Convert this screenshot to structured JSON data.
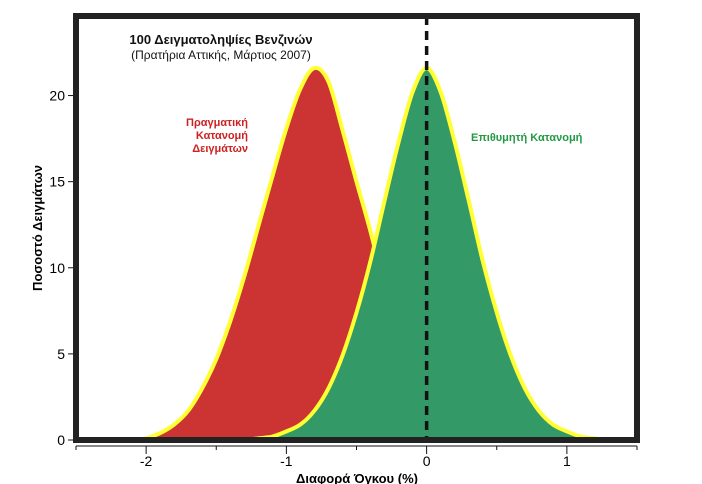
{
  "chart_data": {
    "type": "area",
    "title": "100 Δειγματοληψίες Βενζινών",
    "subtitle": "(Πρατήρια Αττικής, Μάρτιος 2007)",
    "xlabel": "Διαφορά Όγκου (%)",
    "ylabel": "Ποσοστό Δειγμάτων",
    "xlim": [
      -2.5,
      1.5
    ],
    "ylim": [
      0,
      24
    ],
    "xticks": [
      -2,
      -1,
      0,
      1
    ],
    "xtick_labels": [
      "-2",
      "-1",
      "0",
      "1"
    ],
    "yticks": [
      0,
      5,
      10,
      15,
      20
    ],
    "ytick_labels": [
      "0",
      "5",
      "10",
      "15",
      "20"
    ],
    "reference_line_x": 0,
    "colors": {
      "actual": "#cc3333",
      "desired": "#339966",
      "outline": "#ffff33",
      "actual_label": "#cc2222",
      "desired_label": "#229944",
      "frame": "#222222"
    },
    "series": [
      {
        "key": "actual",
        "x": [
          -2.1,
          -2.0,
          -1.9,
          -1.8,
          -1.7,
          -1.6,
          -1.5,
          -1.4,
          -1.3,
          -1.2,
          -1.1,
          -1.0,
          -0.9,
          -0.8,
          -0.7,
          -0.6,
          -0.5,
          -0.4,
          -0.3,
          -0.2,
          -0.1,
          0.0
        ],
        "values": [
          0.0,
          0.1,
          0.4,
          0.9,
          1.7,
          3.0,
          4.7,
          6.9,
          9.5,
          12.4,
          15.3,
          18.1,
          20.4,
          21.6,
          20.8,
          18.0,
          15.0,
          12.1,
          8.8,
          5.4,
          2.6,
          0.9
        ]
      },
      {
        "key": "desired",
        "x": [
          -1.3,
          -1.2,
          -1.1,
          -1.0,
          -0.9,
          -0.8,
          -0.7,
          -0.6,
          -0.5,
          -0.4,
          -0.3,
          -0.2,
          -0.1,
          0.0,
          0.1,
          0.2,
          0.3,
          0.4,
          0.5,
          0.6,
          0.7,
          0.8,
          0.9,
          1.0,
          1.1,
          1.2,
          1.3
        ],
        "values": [
          0.0,
          0.1,
          0.2,
          0.5,
          0.9,
          1.7,
          3.0,
          4.9,
          7.4,
          10.4,
          13.9,
          17.3,
          20.2,
          21.6,
          20.2,
          17.3,
          13.9,
          10.4,
          7.4,
          4.9,
          3.0,
          1.7,
          0.9,
          0.5,
          0.2,
          0.1,
          0.0
        ]
      }
    ],
    "annotations": {
      "actual_lines": [
        "Πραγματική",
        "Κατανομή",
        "Δειγμάτων"
      ],
      "desired": "Επιθυμητή Κατανομή"
    }
  }
}
